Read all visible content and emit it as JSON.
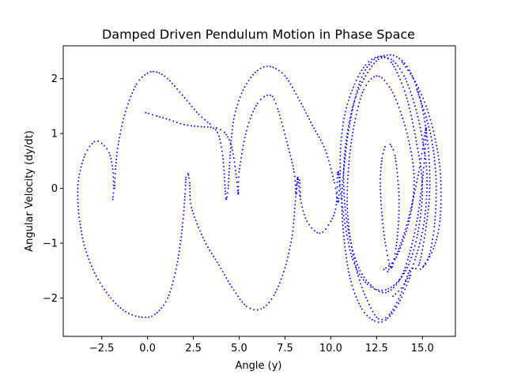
{
  "chart_data": {
    "type": "scatter",
    "title": "Damped Driven Pendulum Motion in Phase Space",
    "xlabel": "Angle (y)",
    "ylabel": "Angular Velocity (dy/dt)",
    "xlim": [
      -4.6,
      16.8
    ],
    "ylim": [
      -2.7,
      2.6
    ],
    "x_ticks": [
      -2.5,
      0.0,
      2.5,
      5.0,
      7.5,
      10.0,
      12.5,
      15.0
    ],
    "x_tick_labels": [
      "−2.5",
      "0.0",
      "2.5",
      "5.0",
      "7.5",
      "10.0",
      "12.5",
      "15.0"
    ],
    "y_ticks": [
      -2,
      -1,
      0,
      1,
      2
    ],
    "y_tick_labels": [
      "−2",
      "−1",
      "0",
      "1",
      "2"
    ],
    "grid": false,
    "marker_color": "#0000ff",
    "series": [
      {
        "points": [
          [
            -0.1,
            1.38
          ],
          [
            0.5,
            1.32
          ],
          [
            1.2,
            1.25
          ],
          [
            1.8,
            1.18
          ],
          [
            2.4,
            1.14
          ],
          [
            3.1,
            1.12
          ],
          [
            3.6,
            1.1
          ],
          [
            3.9,
            0.95
          ],
          [
            4.1,
            0.6
          ],
          [
            4.2,
            0.2
          ],
          [
            4.25,
            -0.1
          ],
          [
            4.3,
            -0.2
          ],
          [
            4.4,
            0.0
          ],
          [
            4.45,
            0.3
          ],
          [
            4.5,
            0.55
          ],
          [
            4.6,
            1.0
          ],
          [
            4.8,
            1.4
          ],
          [
            5.3,
            1.85
          ],
          [
            6.0,
            2.15
          ],
          [
            6.7,
            2.22
          ],
          [
            7.5,
            2.05
          ],
          [
            8.3,
            1.6
          ],
          [
            9.0,
            1.15
          ],
          [
            9.7,
            0.7
          ],
          [
            10.2,
            0.1
          ],
          [
            10.4,
            -0.25
          ],
          [
            10.5,
            0.2
          ],
          [
            10.55,
            0.8
          ],
          [
            10.8,
            1.4
          ],
          [
            11.3,
            1.9
          ],
          [
            11.9,
            2.25
          ],
          [
            12.6,
            2.4
          ],
          [
            13.3,
            2.3
          ],
          [
            14.1,
            1.7
          ],
          [
            14.7,
            0.8
          ],
          [
            15.0,
            0.0
          ],
          [
            14.7,
            -0.9
          ],
          [
            14.0,
            -1.55
          ],
          [
            13.0,
            -1.85
          ],
          [
            12.0,
            -1.75
          ],
          [
            11.2,
            -1.3
          ],
          [
            10.7,
            -0.5
          ],
          [
            10.4,
            0.3
          ],
          [
            10.3,
            -0.3
          ],
          [
            10.0,
            -0.6
          ],
          [
            9.4,
            -0.82
          ],
          [
            8.7,
            -0.6
          ],
          [
            8.35,
            -0.2
          ],
          [
            8.2,
            0.2
          ],
          [
            8.15,
            0.0
          ],
          [
            8.1,
            -0.1
          ],
          [
            8.0,
            0.3
          ],
          [
            7.6,
            0.85
          ],
          [
            7.1,
            1.45
          ],
          [
            6.7,
            1.7
          ],
          [
            6.0,
            1.55
          ],
          [
            5.4,
            1.05
          ],
          [
            5.0,
            0.3
          ],
          [
            4.95,
            -0.1
          ],
          [
            4.85,
            0.2
          ],
          [
            4.6,
            0.75
          ],
          [
            4.2,
            1.02
          ],
          [
            3.6,
            1.12
          ]
        ]
      },
      {
        "points": [
          [
            -1.9,
            -0.2
          ],
          [
            -1.85,
            0.0
          ],
          [
            -1.9,
            0.35
          ],
          [
            -2.1,
            0.65
          ],
          [
            -2.5,
            0.82
          ],
          [
            -2.9,
            0.85
          ],
          [
            -3.4,
            0.62
          ],
          [
            -3.75,
            0.2
          ],
          [
            -3.8,
            -0.2
          ],
          [
            -3.7,
            -0.6
          ],
          [
            -3.4,
            -1.1
          ],
          [
            -2.8,
            -1.6
          ],
          [
            -2.0,
            -2.0
          ],
          [
            -1.2,
            -2.25
          ],
          [
            -0.3,
            -2.35
          ],
          [
            0.4,
            -2.3
          ],
          [
            1.1,
            -2.0
          ],
          [
            1.6,
            -1.4
          ],
          [
            1.9,
            -0.7
          ],
          [
            2.05,
            -0.1
          ],
          [
            2.1,
            0.2
          ],
          [
            2.2,
            0.27
          ],
          [
            2.3,
            0.1
          ],
          [
            2.4,
            -0.35
          ],
          [
            3.1,
            -0.95
          ],
          [
            3.9,
            -1.4
          ],
          [
            4.6,
            -1.8
          ],
          [
            5.4,
            -2.15
          ],
          [
            6.2,
            -2.2
          ],
          [
            6.9,
            -1.95
          ],
          [
            7.5,
            -1.45
          ],
          [
            7.9,
            -0.85
          ],
          [
            8.05,
            -0.3
          ],
          [
            8.2,
            0.2
          ],
          [
            8.3,
            0.15
          ],
          [
            8.35,
            -0.2
          ]
        ]
      },
      {
        "points": [
          [
            -1.8,
            0.0
          ],
          [
            -1.75,
            0.35
          ],
          [
            -1.6,
            0.8
          ],
          [
            -1.2,
            1.4
          ],
          [
            -0.6,
            1.9
          ],
          [
            0.0,
            2.1
          ],
          [
            0.5,
            2.12
          ],
          [
            1.1,
            2.0
          ],
          [
            1.9,
            1.7
          ],
          [
            2.8,
            1.35
          ],
          [
            3.5,
            1.15
          ]
        ]
      },
      {
        "points": [
          [
            12.9,
            -1.48
          ],
          [
            13.5,
            -1.3
          ],
          [
            14.0,
            -0.9
          ],
          [
            14.4,
            -0.4
          ],
          [
            14.55,
            0.2
          ],
          [
            14.3,
            0.8
          ],
          [
            13.8,
            1.4
          ],
          [
            13.2,
            1.85
          ],
          [
            12.5,
            2.05
          ],
          [
            11.8,
            1.8
          ],
          [
            11.3,
            1.2
          ],
          [
            11.0,
            0.5
          ],
          [
            10.9,
            -0.3
          ],
          [
            11.1,
            -1.0
          ],
          [
            11.5,
            -1.6
          ],
          [
            12.0,
            -2.05
          ],
          [
            12.6,
            -2.38
          ],
          [
            13.2,
            -2.3
          ],
          [
            13.8,
            -1.95
          ],
          [
            14.3,
            -1.5
          ],
          [
            14.8,
            -1.4
          ],
          [
            15.2,
            -0.7
          ],
          [
            15.4,
            0.0
          ],
          [
            15.3,
            0.8
          ],
          [
            14.9,
            1.6
          ],
          [
            14.3,
            2.15
          ],
          [
            13.6,
            2.4
          ],
          [
            12.9,
            2.42
          ],
          [
            12.2,
            2.3
          ],
          [
            11.6,
            1.95
          ],
          [
            11.1,
            1.3
          ],
          [
            10.8,
            0.6
          ],
          [
            10.6,
            -0.2
          ],
          [
            10.75,
            -1.0
          ],
          [
            11.1,
            -1.7
          ],
          [
            11.7,
            -2.2
          ],
          [
            12.4,
            -2.42
          ],
          [
            13.0,
            -2.4
          ],
          [
            13.7,
            -2.1
          ],
          [
            14.4,
            -1.55
          ]
        ]
      },
      {
        "points": [
          [
            13.1,
            -1.52
          ],
          [
            13.6,
            -1.2
          ],
          [
            14.2,
            -0.6
          ],
          [
            14.8,
            0.3
          ],
          [
            15.2,
            1.1
          ],
          [
            15.05,
            0.3
          ],
          [
            14.7,
            -0.6
          ],
          [
            14.2,
            -1.3
          ],
          [
            13.7,
            -1.7
          ],
          [
            13.0,
            -1.9
          ],
          [
            12.3,
            -1.8
          ],
          [
            11.6,
            -1.5
          ],
          [
            11.1,
            -1.0
          ],
          [
            10.8,
            -0.4
          ],
          [
            10.7,
            0.3
          ],
          [
            10.9,
            1.0
          ],
          [
            11.3,
            1.6
          ],
          [
            11.9,
            2.05
          ],
          [
            12.6,
            2.35
          ],
          [
            13.3,
            2.35
          ],
          [
            14.0,
            2.05
          ],
          [
            14.6,
            1.5
          ],
          [
            15.0,
            0.9
          ],
          [
            15.25,
            0.2
          ],
          [
            15.1,
            -0.6
          ],
          [
            14.6,
            -1.3
          ],
          [
            14.0,
            -1.75
          ],
          [
            13.3,
            -2.0
          ]
        ]
      },
      {
        "points": [
          [
            13.25,
            0.8
          ],
          [
            13.5,
            0.6
          ],
          [
            13.7,
            0.0
          ],
          [
            13.7,
            -0.6
          ],
          [
            13.55,
            -1.1
          ],
          [
            13.3,
            -1.45
          ],
          [
            13.0,
            -1.05
          ],
          [
            12.8,
            -0.5
          ],
          [
            12.7,
            0.1
          ],
          [
            12.8,
            0.55
          ],
          [
            13.0,
            0.8
          ]
        ]
      },
      {
        "points": [
          [
            14.7,
            1.8
          ],
          [
            15.2,
            1.3
          ],
          [
            15.55,
            0.8
          ],
          [
            15.75,
            0.1
          ],
          [
            15.65,
            -0.7
          ],
          [
            15.3,
            -1.3
          ],
          [
            14.8,
            -1.5
          ]
        ]
      },
      {
        "points": [
          [
            13.9,
            2.3
          ],
          [
            14.6,
            1.95
          ],
          [
            15.2,
            1.5
          ],
          [
            15.7,
            0.9
          ],
          [
            16.0,
            0.2
          ],
          [
            15.95,
            -0.6
          ],
          [
            15.6,
            -1.1
          ],
          [
            15.0,
            -1.45
          ]
        ]
      }
    ]
  }
}
